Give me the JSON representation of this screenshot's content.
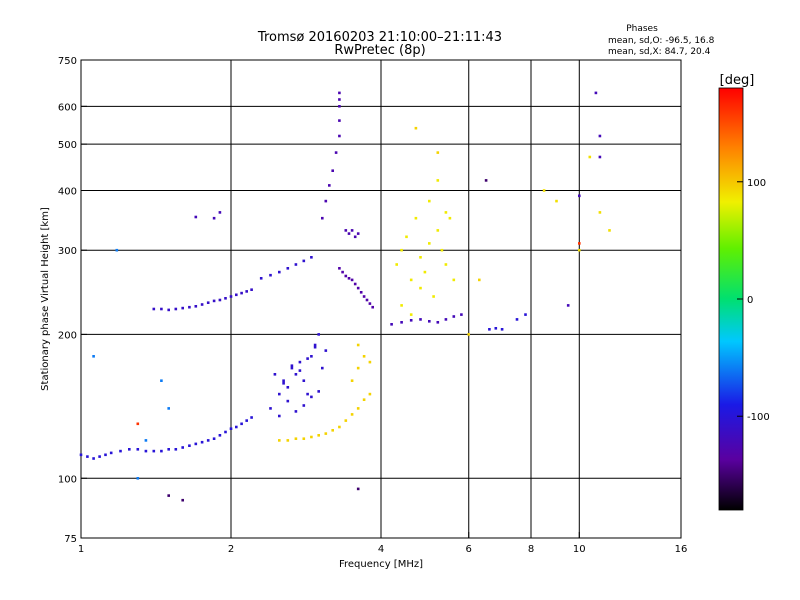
{
  "chart_data": {
    "type": "scatter",
    "title": "Tromsø 20160203 21:10:00–21:11:43",
    "subtitle": "RwPretec (8p)",
    "xlabel": "Frequency [MHz]",
    "ylabel": "Stationary phase Virtual Height [km]",
    "x_scale": "log",
    "y_scale": "log",
    "xlim": [
      1,
      16
    ],
    "ylim": [
      75,
      750
    ],
    "x_ticks": [
      1,
      2,
      4,
      6,
      8,
      10,
      16
    ],
    "y_ticks": [
      75,
      100,
      200,
      300,
      400,
      500,
      600,
      750
    ],
    "x_grid_lines": [
      2,
      4,
      6,
      8,
      10
    ],
    "y_grid_lines": [
      100,
      200,
      300,
      400,
      500,
      600
    ],
    "grid": true,
    "stats": {
      "heading": "Phases",
      "line_o": "mean, sd,O: -96.5, 16.8",
      "line_x": "mean, sd,X:  84.7, 20.4"
    },
    "colorbar": {
      "unit": "[deg]",
      "range": [
        -180,
        180
      ],
      "ticks": [
        100,
        0,
        -100
      ],
      "colormap": "rainbow",
      "placement": "right"
    },
    "point_groups": [
      {
        "phase": -100,
        "x": [
          1.0,
          1.03,
          1.06,
          1.09,
          1.12,
          1.15,
          1.2,
          1.25,
          1.3,
          1.35,
          1.4,
          1.45,
          1.5,
          1.55,
          1.6,
          1.65,
          1.7,
          1.75,
          1.8,
          1.85,
          1.9,
          1.95,
          2.0,
          2.05,
          2.1,
          2.15,
          2.2
        ],
        "y": [
          112,
          111,
          110,
          111,
          112,
          113,
          114,
          115,
          115,
          114,
          114,
          114,
          115,
          115,
          116,
          117,
          118,
          119,
          120,
          121,
          123,
          125,
          127,
          128,
          130,
          132,
          134
        ]
      },
      {
        "phase": -110,
        "x": [
          1.4,
          1.45,
          1.5,
          1.55,
          1.6,
          1.65,
          1.7,
          1.75,
          1.8,
          1.85,
          1.9,
          1.95,
          2.0,
          2.05,
          2.1,
          2.15,
          2.2
        ],
        "y": [
          226,
          226,
          225,
          226,
          227,
          228,
          229,
          231,
          233,
          235,
          236,
          238,
          240,
          242,
          244,
          246,
          248
        ]
      },
      {
        "phase": -105,
        "x": [
          2.3,
          2.4,
          2.5,
          2.6,
          2.7,
          2.8,
          2.9
        ],
        "y": [
          262,
          266,
          270,
          275,
          280,
          285,
          290
        ]
      },
      {
        "phase": -120,
        "x": [
          1.7,
          1.85,
          1.9
        ],
        "y": [
          352,
          350,
          360
        ]
      },
      {
        "phase": -105,
        "x": [
          2.4,
          2.5,
          2.55,
          2.6,
          2.65,
          2.7,
          2.75,
          2.8,
          2.85,
          2.9,
          2.95,
          3.0,
          3.05,
          3.1,
          2.5,
          2.6,
          2.7,
          2.8,
          2.9,
          3.0,
          2.45,
          2.55,
          2.65,
          2.75,
          2.85,
          2.95
        ],
        "y": [
          140,
          150,
          160,
          155,
          170,
          165,
          175,
          160,
          150,
          180,
          190,
          200,
          170,
          185,
          135,
          145,
          138,
          142,
          148,
          152,
          165,
          158,
          172,
          168,
          178,
          188
        ]
      },
      {
        "phase": -125,
        "x": [
          3.3,
          3.3,
          3.3,
          3.3,
          3.3,
          3.25,
          3.2,
          3.15,
          3.1,
          3.05
        ],
        "y": [
          640,
          620,
          600,
          560,
          520,
          480,
          440,
          410,
          380,
          350
        ]
      },
      {
        "phase": -130,
        "x": [
          3.3,
          3.35,
          3.4,
          3.45,
          3.5,
          3.55,
          3.6,
          3.65,
          3.7,
          3.75,
          3.8,
          3.85
        ],
        "y": [
          275,
          270,
          265,
          262,
          260,
          255,
          250,
          245,
          240,
          236,
          232,
          228
        ]
      },
      {
        "phase": -125,
        "x": [
          3.4,
          3.45,
          3.5,
          3.55,
          3.6
        ],
        "y": [
          330,
          325,
          330,
          320,
          325
        ]
      },
      {
        "phase": 95,
        "x": [
          2.5,
          2.6,
          2.7,
          2.8,
          2.9,
          3.0,
          3.1,
          3.2,
          3.3,
          3.4,
          3.5,
          3.6,
          3.7,
          3.8
        ],
        "y": [
          120,
          120,
          121,
          121,
          122,
          123,
          124,
          126,
          128,
          132,
          136,
          140,
          146,
          150
        ]
      },
      {
        "phase": 85,
        "x": [
          4.3,
          4.4,
          4.5,
          4.6,
          4.7,
          4.8,
          4.9,
          5.0,
          5.1,
          5.2,
          5.3,
          5.4,
          5.5,
          5.6,
          4.4,
          4.6,
          4.8,
          5.0,
          5.2,
          5.4
        ],
        "y": [
          280,
          300,
          320,
          260,
          350,
          290,
          270,
          310,
          240,
          330,
          300,
          280,
          350,
          260,
          230,
          220,
          250,
          380,
          420,
          360
        ]
      },
      {
        "phase": -120,
        "x": [
          4.2,
          4.4,
          4.6,
          4.8,
          5.0,
          5.2,
          5.4,
          5.6,
          5.8
        ],
        "y": [
          210,
          212,
          214,
          215,
          213,
          212,
          215,
          218,
          220
        ]
      },
      {
        "phase": -100,
        "x": [
          6.6,
          6.8,
          7.0,
          7.5,
          7.8
        ],
        "y": [
          205,
          206,
          205,
          215,
          220
        ]
      },
      {
        "phase": 95,
        "x": [
          3.6,
          3.7,
          3.8,
          3.5,
          3.6,
          4.7,
          5.2,
          6.3,
          6.0
        ],
        "y": [
          170,
          180,
          175,
          160,
          190,
          540,
          480,
          260,
          200
        ]
      },
      {
        "phase": -120,
        "x": [
          10.8,
          11.0,
          11.0,
          10.0,
          9.5
        ],
        "y": [
          640,
          520,
          470,
          390,
          230
        ]
      },
      {
        "phase": 90,
        "x": [
          8.5,
          9.0,
          10.0,
          10.5,
          11.0,
          11.5
        ],
        "y": [
          400,
          380,
          300,
          470,
          360,
          330
        ]
      },
      {
        "phase": -60,
        "x": [
          1.06,
          1.18,
          1.3,
          1.45,
          1.5,
          1.35
        ],
        "y": [
          180,
          300,
          100,
          160,
          140,
          120
        ]
      },
      {
        "phase": -150,
        "x": [
          1.5,
          1.6,
          3.6,
          6.5
        ],
        "y": [
          92,
          90,
          95,
          420
        ]
      },
      {
        "phase": 160,
        "x": [
          1.3,
          10.0
        ],
        "y": [
          130,
          310
        ]
      }
    ]
  }
}
